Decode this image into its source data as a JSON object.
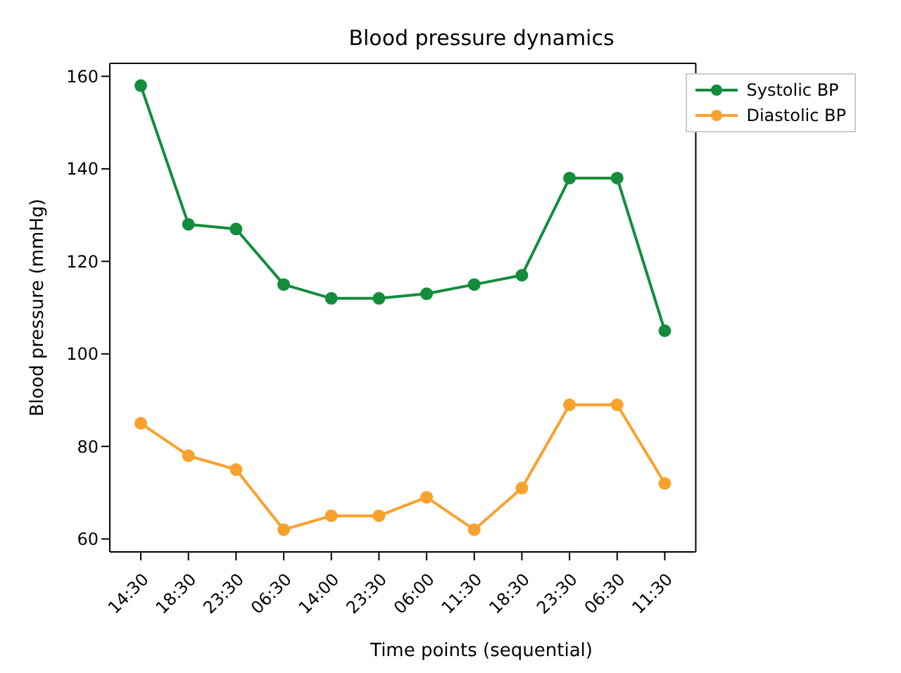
{
  "chart_data": {
    "type": "line",
    "title": "Blood pressure dynamics",
    "xlabel": "Time points (sequential)",
    "ylabel": "Blood pressure (mmHg)",
    "categories": [
      "14:30",
      "18:30",
      "23:30",
      "06:30",
      "14:00",
      "23:30",
      "06:00",
      "11:30",
      "18:30",
      "23:30",
      "06:30",
      "11:30"
    ],
    "series": [
      {
        "name": "Systolic BP",
        "color": "#138d3c",
        "values": [
          158,
          128,
          127,
          115,
          112,
          112,
          113,
          115,
          117,
          138,
          138,
          105
        ]
      },
      {
        "name": "Diastolic BP",
        "color": "#f9a12d",
        "values": [
          85,
          78,
          75,
          62,
          65,
          65,
          69,
          62,
          71,
          89,
          89,
          72
        ]
      }
    ],
    "ylim": [
      57.2,
      162.8
    ],
    "yticks": [
      60,
      80,
      100,
      120,
      140,
      160
    ],
    "legend": "top right",
    "marker": "circle",
    "line_style": "solid",
    "grid": false
  }
}
